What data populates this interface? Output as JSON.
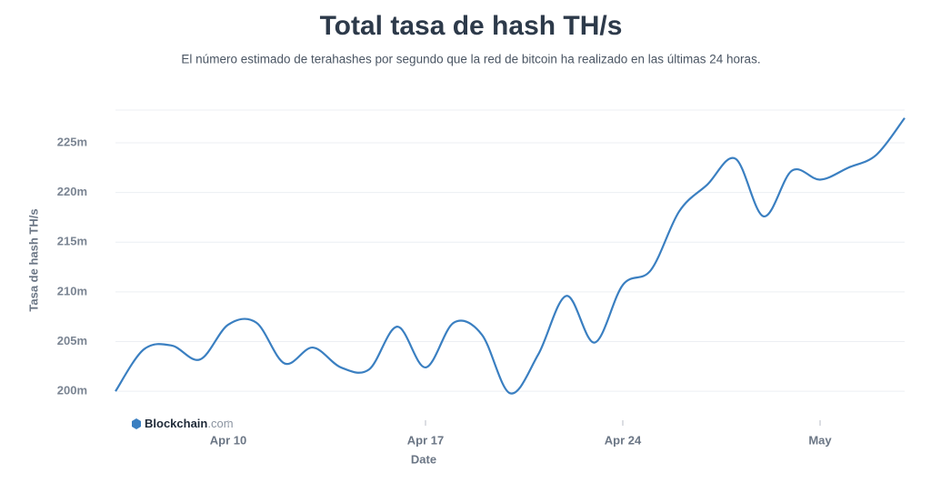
{
  "chart_data": {
    "type": "line",
    "title": "Total tasa de hash TH/s",
    "subtitle": "El número estimado de terahashes por segundo que la red de bitcoin ha realizado en las últimas 24 horas.",
    "y_label": "Tasa de hash TH/s",
    "x_label": "Date",
    "watermark": [
      "Blockchain",
      ".com"
    ],
    "x": [
      "04-06",
      "04-07",
      "04-08",
      "04-09",
      "04-10",
      "04-11",
      "04-12",
      "04-13",
      "04-14",
      "04-15",
      "04-16",
      "04-17",
      "04-18",
      "04-19",
      "04-20",
      "04-21",
      "04-22",
      "04-23",
      "04-24",
      "04-25",
      "04-26",
      "04-27",
      "04-28",
      "04-29",
      "04-30",
      "05-01",
      "05-02",
      "05-03",
      "05-04"
    ],
    "series": [
      {
        "name": "Tasa de hash",
        "color": "#3a7fc1",
        "values": [
          200.0,
          204.2,
          204.6,
          203.2,
          206.7,
          206.9,
          202.8,
          204.4,
          202.4,
          202.2,
          206.5,
          202.4,
          206.9,
          205.7,
          199.8,
          203.7,
          209.6,
          204.9,
          210.7,
          212.2,
          218.1,
          220.8,
          223.4,
          217.6,
          222.2,
          221.3,
          222.5,
          223.8,
          227.5
        ]
      }
    ],
    "xlim": [
      "04-06",
      "05-04"
    ],
    "xticks": [
      {
        "value": "04-10",
        "label": "Apr 10"
      },
      {
        "value": "04-17",
        "label": "Apr 17"
      },
      {
        "value": "04-24",
        "label": "Apr 24"
      },
      {
        "value": "05-01",
        "label": "May"
      }
    ],
    "ylim": [
      198,
      228.3
    ],
    "yticks": [
      {
        "value": 200,
        "label": "200m"
      },
      {
        "value": 205,
        "label": "205m"
      },
      {
        "value": 210,
        "label": "210m"
      },
      {
        "value": 215,
        "label": "215m"
      },
      {
        "value": 220,
        "label": "220m"
      },
      {
        "value": 225,
        "label": "225m"
      }
    ],
    "grid": true
  }
}
